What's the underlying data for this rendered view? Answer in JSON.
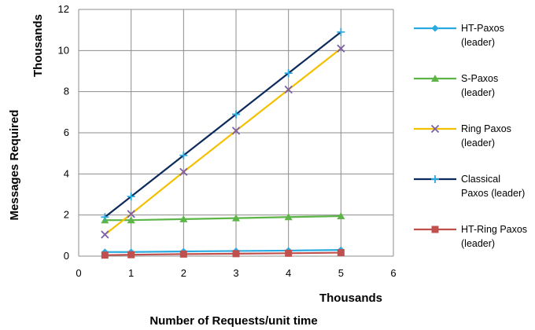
{
  "chart_data": {
    "type": "line",
    "xlabel": "Number of Requests/unit time",
    "xunits": "Thousands",
    "ylabel": "Messages Required",
    "yunits": "Thousands",
    "xlim": [
      0,
      6
    ],
    "ylim": [
      0,
      12
    ],
    "xticks": [
      0,
      1,
      2,
      3,
      4,
      5,
      6
    ],
    "yticks": [
      0,
      2,
      4,
      6,
      8,
      10,
      12
    ],
    "grid": true,
    "legend_position": "right",
    "x": [
      0.5,
      1,
      2,
      3,
      4,
      5
    ],
    "series": [
      {
        "name_lines": [
          "HT-Paxos",
          "(leader)"
        ],
        "values": [
          0.2,
          0.2,
          0.23,
          0.25,
          0.27,
          0.3
        ],
        "color": "#29abe2",
        "marker": "diamond"
      },
      {
        "name_lines": [
          "S-Paxos",
          "(leader)"
        ],
        "values": [
          1.75,
          1.75,
          1.8,
          1.85,
          1.9,
          1.95
        ],
        "color": "#5db548",
        "marker": "triangle"
      },
      {
        "name_lines": [
          "Ring Paxos",
          "(leader)"
        ],
        "values": [
          1.05,
          2.05,
          4.1,
          6.1,
          8.1,
          10.1
        ],
        "color": "#f5c000",
        "marker": "x",
        "marker_color": "#7b5ea7"
      },
      {
        "name_lines": [
          "Classical",
          "Paxos (leader)"
        ],
        "values": [
          1.9,
          2.9,
          4.9,
          6.9,
          8.9,
          10.9
        ],
        "color": "#0d2a5c",
        "marker": "plus",
        "marker_color": "#29abe2"
      },
      {
        "name_lines": [
          "HT-Ring Paxos",
          "(leader)"
        ],
        "values": [
          0.05,
          0.07,
          0.1,
          0.12,
          0.14,
          0.17
        ],
        "color": "#c0504d",
        "marker": "square"
      }
    ]
  }
}
